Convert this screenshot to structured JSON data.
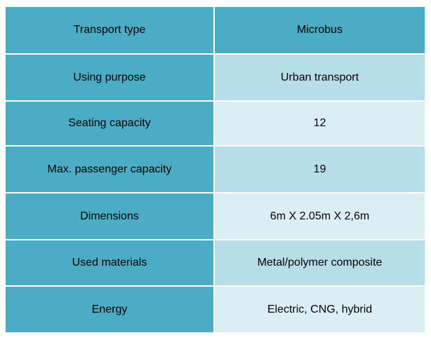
{
  "colors": {
    "header_and_label_bg": "#4bacc6",
    "band_dark": "#b6dde8",
    "band_light": "#dbeef3",
    "divider": "#ffffff"
  },
  "rows": [
    {
      "label": "Transport type",
      "value": "Microbus"
    },
    {
      "label": "Using purpose",
      "value": "Urban transport"
    },
    {
      "label": "Seating capacity",
      "value": "12"
    },
    {
      "label": "Max. passenger capacity",
      "value": "19"
    },
    {
      "label": "Dimensions",
      "value": "6m X 2.05m X 2,6m"
    },
    {
      "label": "Used materials",
      "value": "Metal/polymer composite"
    },
    {
      "label": "Energy",
      "value": "Electric, CNG, hybrid"
    }
  ]
}
